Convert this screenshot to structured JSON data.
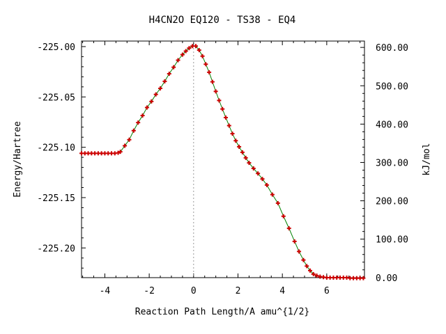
{
  "chart_data": {
    "type": "line",
    "title": "H4CN2O   EQ120 - TS38 - EQ4",
    "xlabel": "Reaction Path Length/A amu^{1/2}",
    "ylabel": "Energy/Hartree",
    "y2label": "kJ/mol",
    "xlim": [
      -5.05,
      7.7
    ],
    "ylim": [
      -225.2295,
      -224.9945
    ],
    "y2lim": [
      -0.4,
      616.6
    ],
    "x_ticks": [
      -4,
      -2,
      0,
      2,
      4,
      6
    ],
    "x_tick_labels": [
      "-4",
      "-2",
      "0",
      "2",
      "4",
      "6"
    ],
    "y_ticks": [
      -225.0,
      -225.05,
      -225.1,
      -225.15,
      -225.2
    ],
    "y_tick_labels": [
      "-225.00",
      "-225.05",
      "-225.10",
      "-225.15",
      "-225.20"
    ],
    "y2_ticks": [
      600,
      500,
      400,
      300,
      200,
      100,
      0
    ],
    "y2_tick_labels": [
      "600.00",
      "500.00",
      "400.00",
      "300.00",
      "200.00",
      "100.00",
      "0.00"
    ],
    "ts_marker_x": 0,
    "line_color": "#008000",
    "marker_color": "#cc0000",
    "vline_color": "#999999",
    "grid": false,
    "legend": "none",
    "series": [
      {
        "x": [
          -5.05,
          -4.9,
          -4.75,
          -4.6,
          -4.45,
          -4.3,
          -4.15,
          -4.0,
          -3.85,
          -3.7,
          -3.55,
          -3.4,
          -3.3,
          -3.1,
          -2.9,
          -2.7,
          -2.5,
          -2.3,
          -2.1,
          -1.9,
          -1.7,
          -1.5,
          -1.3,
          -1.1,
          -0.9,
          -0.7,
          -0.5,
          -0.35,
          -0.2,
          -0.05,
          0.1,
          0.25,
          0.4,
          0.55,
          0.7,
          0.85,
          1.0,
          1.15,
          1.3,
          1.45,
          1.6,
          1.75,
          1.9,
          2.05,
          2.2,
          2.35,
          2.5,
          2.7,
          2.9,
          3.1,
          3.3,
          3.55,
          3.8,
          4.05,
          4.3,
          4.55,
          4.75,
          4.95,
          5.1,
          5.25,
          5.4,
          5.55,
          5.7,
          5.85,
          6.0,
          6.15,
          6.3,
          6.45,
          6.6,
          6.75,
          6.9,
          7.05,
          7.2,
          7.35,
          7.5,
          7.65
        ],
        "y": [
          -225.106,
          -225.106,
          -225.106,
          -225.106,
          -225.106,
          -225.106,
          -225.106,
          -225.106,
          -225.106,
          -225.106,
          -225.106,
          -225.1055,
          -225.1045,
          -225.0985,
          -225.0925,
          -225.0835,
          -225.0755,
          -225.0685,
          -225.0605,
          -225.0545,
          -225.0475,
          -225.0415,
          -225.0345,
          -225.027,
          -225.0205,
          -225.0135,
          -225.008,
          -225.0045,
          -225.0015,
          -224.9995,
          -224.9995,
          -225.0035,
          -225.0095,
          -225.0175,
          -225.0255,
          -225.035,
          -225.0445,
          -225.0535,
          -225.062,
          -225.0705,
          -225.0785,
          -225.0865,
          -225.0935,
          -225.0995,
          -225.105,
          -225.1105,
          -225.1155,
          -225.121,
          -225.126,
          -225.1315,
          -225.1375,
          -225.147,
          -225.1555,
          -225.1685,
          -225.1805,
          -225.1935,
          -225.2035,
          -225.212,
          -225.218,
          -225.2225,
          -225.226,
          -225.2275,
          -225.2285,
          -225.229,
          -225.2295,
          -225.2295,
          -225.2295,
          -225.2295,
          -225.2295,
          -225.2295,
          -225.2295,
          -225.23,
          -225.23,
          -225.23,
          -225.23,
          -225.23
        ]
      }
    ]
  }
}
